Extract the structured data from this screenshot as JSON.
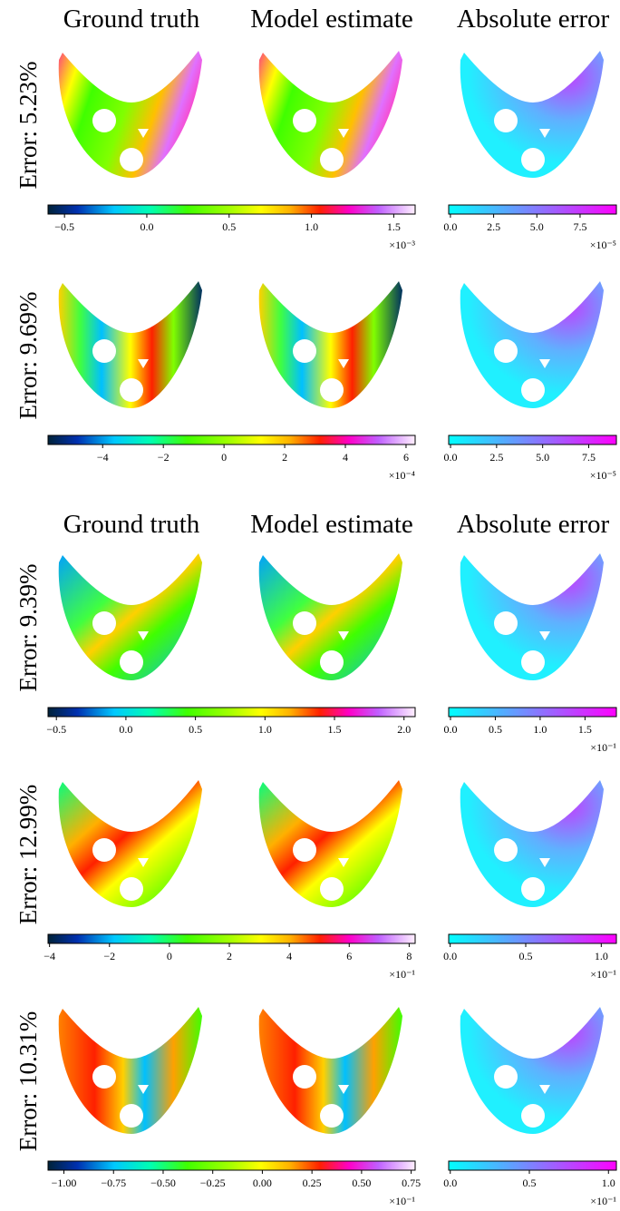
{
  "header_rows": [
    [
      "Ground truth",
      "Model estimate",
      "Absolute error"
    ],
    [
      "Ground truth",
      "Model estimate",
      "Absolute error"
    ]
  ],
  "rows": [
    {
      "error_label": "Error:  5.23%",
      "field_colorbar": {
        "lim": [
          -0.6,
          1.63
        ],
        "ticks": [
          {
            "value": -0.5,
            "label": "−0.5"
          },
          {
            "value": 0,
            "label": "0.0"
          },
          {
            "value": 0.5,
            "label": "0.5"
          },
          {
            "value": 1,
            "label": "1.0"
          },
          {
            "value": 1.5,
            "label": "1.5"
          }
        ],
        "scale_label": "×10⁻³"
      },
      "error_colorbar": {
        "lim": [
          -0.1,
          9.6
        ],
        "ticks": [
          {
            "value": 0,
            "label": "0.0"
          },
          {
            "value": 2.5,
            "label": "2.5"
          },
          {
            "value": 5,
            "label": "5.0"
          },
          {
            "value": 7.5,
            "label": "7.5"
          }
        ],
        "scale_label": "×10⁻⁵"
      }
    },
    {
      "error_label": "Error:  9.69%",
      "field_colorbar": {
        "lim": [
          -5.8,
          6.3
        ],
        "ticks": [
          {
            "value": -4,
            "label": "−4"
          },
          {
            "value": -2,
            "label": "−2"
          },
          0,
          2,
          4,
          6
        ],
        "scale_label": "×10⁻⁴"
      },
      "error_colorbar": {
        "lim": [
          -0.1,
          9.0
        ],
        "ticks": [
          {
            "value": 0,
            "label": "0.0"
          },
          {
            "value": 2.5,
            "label": "2.5"
          },
          {
            "value": 5,
            "label": "5.0"
          },
          {
            "value": 7.5,
            "label": "7.5"
          }
        ],
        "scale_label": "×10⁻⁵"
      }
    },
    {
      "error_label": "Error:  9.39%",
      "field_colorbar": {
        "lim": [
          -0.56,
          2.08
        ],
        "ticks": [
          {
            "value": -0.5,
            "label": "−0.5"
          },
          {
            "value": 0,
            "label": "0.0"
          },
          {
            "value": 0.5,
            "label": "0.5"
          },
          {
            "value": 1,
            "label": "1.0"
          },
          {
            "value": 1.5,
            "label": "1.5"
          },
          {
            "value": 2,
            "label": "2.0"
          }
        ]
      },
      "error_colorbar": {
        "lim": [
          -0.02,
          1.85
        ],
        "ticks": [
          {
            "value": 0,
            "label": "0.0"
          },
          0.5,
          {
            "value": 1,
            "label": "1.0"
          },
          1.5
        ],
        "scale_label": "×10⁻¹"
      }
    },
    {
      "error_label": "Error:  12.99%",
      "field_colorbar": {
        "lim": [
          -4.05,
          8.2
        ],
        "ticks": [
          {
            "value": -4,
            "label": "−4"
          },
          {
            "value": -2,
            "label": "−2"
          },
          0,
          2,
          4,
          6,
          8
        ],
        "scale_label": "×10⁻¹"
      },
      "error_colorbar": {
        "lim": [
          -0.01,
          1.1
        ],
        "ticks": [
          {
            "value": 0,
            "label": "0.0"
          },
          0.5,
          {
            "value": 1,
            "label": "1.0"
          }
        ],
        "scale_label": "×10⁻¹"
      }
    },
    {
      "error_label": "Error:  10.31%",
      "field_colorbar": {
        "lim": [
          -1.08,
          0.77
        ],
        "ticks": [
          {
            "value": -1,
            "label": "−1.00"
          },
          {
            "value": -0.75,
            "label": "−0.75"
          },
          {
            "value": -0.5,
            "label": "−0.50"
          },
          {
            "value": -0.25,
            "label": "−0.25"
          },
          {
            "value": 0,
            "label": "0.00"
          },
          0.25,
          {
            "value": 0.5,
            "label": "0.50"
          },
          0.75
        ],
        "scale_label": "×10⁻¹"
      },
      "error_colorbar": {
        "lim": [
          -0.01,
          1.05
        ],
        "ticks": [
          {
            "value": 0,
            "label": "0.0"
          },
          0.5,
          {
            "value": 1,
            "label": "1.0"
          }
        ],
        "scale_label": "×10⁻¹"
      }
    }
  ]
}
